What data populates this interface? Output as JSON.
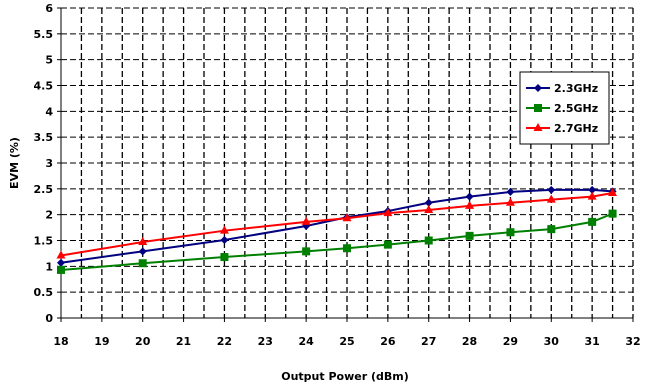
{
  "chart_data": {
    "type": "line",
    "xlabel": "Output Power (dBm)",
    "ylabel": "EVM (%)",
    "xlim": [
      18,
      32
    ],
    "ylim": [
      0,
      6
    ],
    "xticks": [
      "18",
      "19",
      "20",
      "21",
      "22",
      "23",
      "24",
      "25",
      "26",
      "27",
      "28",
      "29",
      "30",
      "31",
      "32"
    ],
    "yticks": [
      "0",
      "0.5",
      "1",
      "1.5",
      "2",
      "2.5",
      "3",
      "3.5",
      "4",
      "4.5",
      "5",
      "5.5",
      "6"
    ],
    "grid": "dashed vertical and horizontal",
    "legend_position": "right",
    "series": [
      {
        "name": "2.3GHz",
        "color": "#000080",
        "marker": "diamond",
        "x": [
          18,
          20,
          22,
          24,
          25,
          26,
          27,
          28,
          29,
          30,
          31,
          31.5
        ],
        "y": [
          1.07,
          1.29,
          1.51,
          1.78,
          1.95,
          2.07,
          2.23,
          2.35,
          2.44,
          2.48,
          2.48,
          2.45
        ]
      },
      {
        "name": "2.5GHz",
        "color": "#008000",
        "marker": "square",
        "x": [
          18,
          20,
          22,
          24,
          25,
          26,
          27,
          28,
          29,
          30,
          31,
          31.5
        ],
        "y": [
          0.93,
          1.06,
          1.18,
          1.29,
          1.35,
          1.42,
          1.5,
          1.59,
          1.66,
          1.72,
          1.86,
          2.02
        ]
      },
      {
        "name": "2.7GHz",
        "color": "#ff0000",
        "marker": "triangle",
        "x": [
          18,
          20,
          22,
          24,
          25,
          26,
          27,
          28,
          29,
          30,
          31,
          31.5
        ],
        "y": [
          1.21,
          1.47,
          1.69,
          1.86,
          1.93,
          2.03,
          2.09,
          2.17,
          2.23,
          2.29,
          2.35,
          2.42
        ]
      }
    ]
  }
}
